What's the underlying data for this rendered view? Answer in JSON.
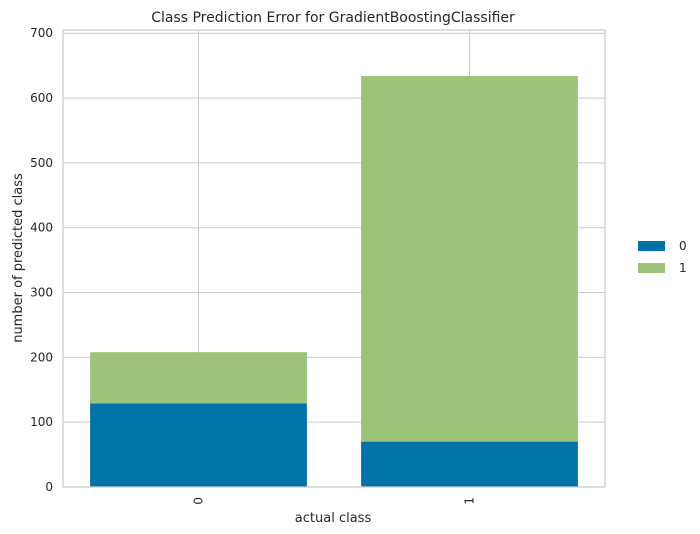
{
  "chart_data": {
    "type": "bar",
    "stacked": true,
    "title": "Class Prediction Error for GradientBoostingClassifier",
    "xlabel": "actual class",
    "ylabel": "number of predicted class",
    "categories": [
      "0",
      "1"
    ],
    "series": [
      {
        "name": "0",
        "values": [
          129,
          70
        ],
        "color": "#0072a7"
      },
      {
        "name": "1",
        "values": [
          79,
          564
        ],
        "color": "#9dc37a"
      }
    ],
    "ylim": [
      0,
      705
    ],
    "yticks": [
      0,
      100,
      200,
      300,
      400,
      500,
      600,
      700
    ],
    "grid": true,
    "legend_position": "right",
    "colors": {
      "grid": "#cccccc",
      "frame": "#cccccc",
      "background": "#ffffff"
    }
  }
}
